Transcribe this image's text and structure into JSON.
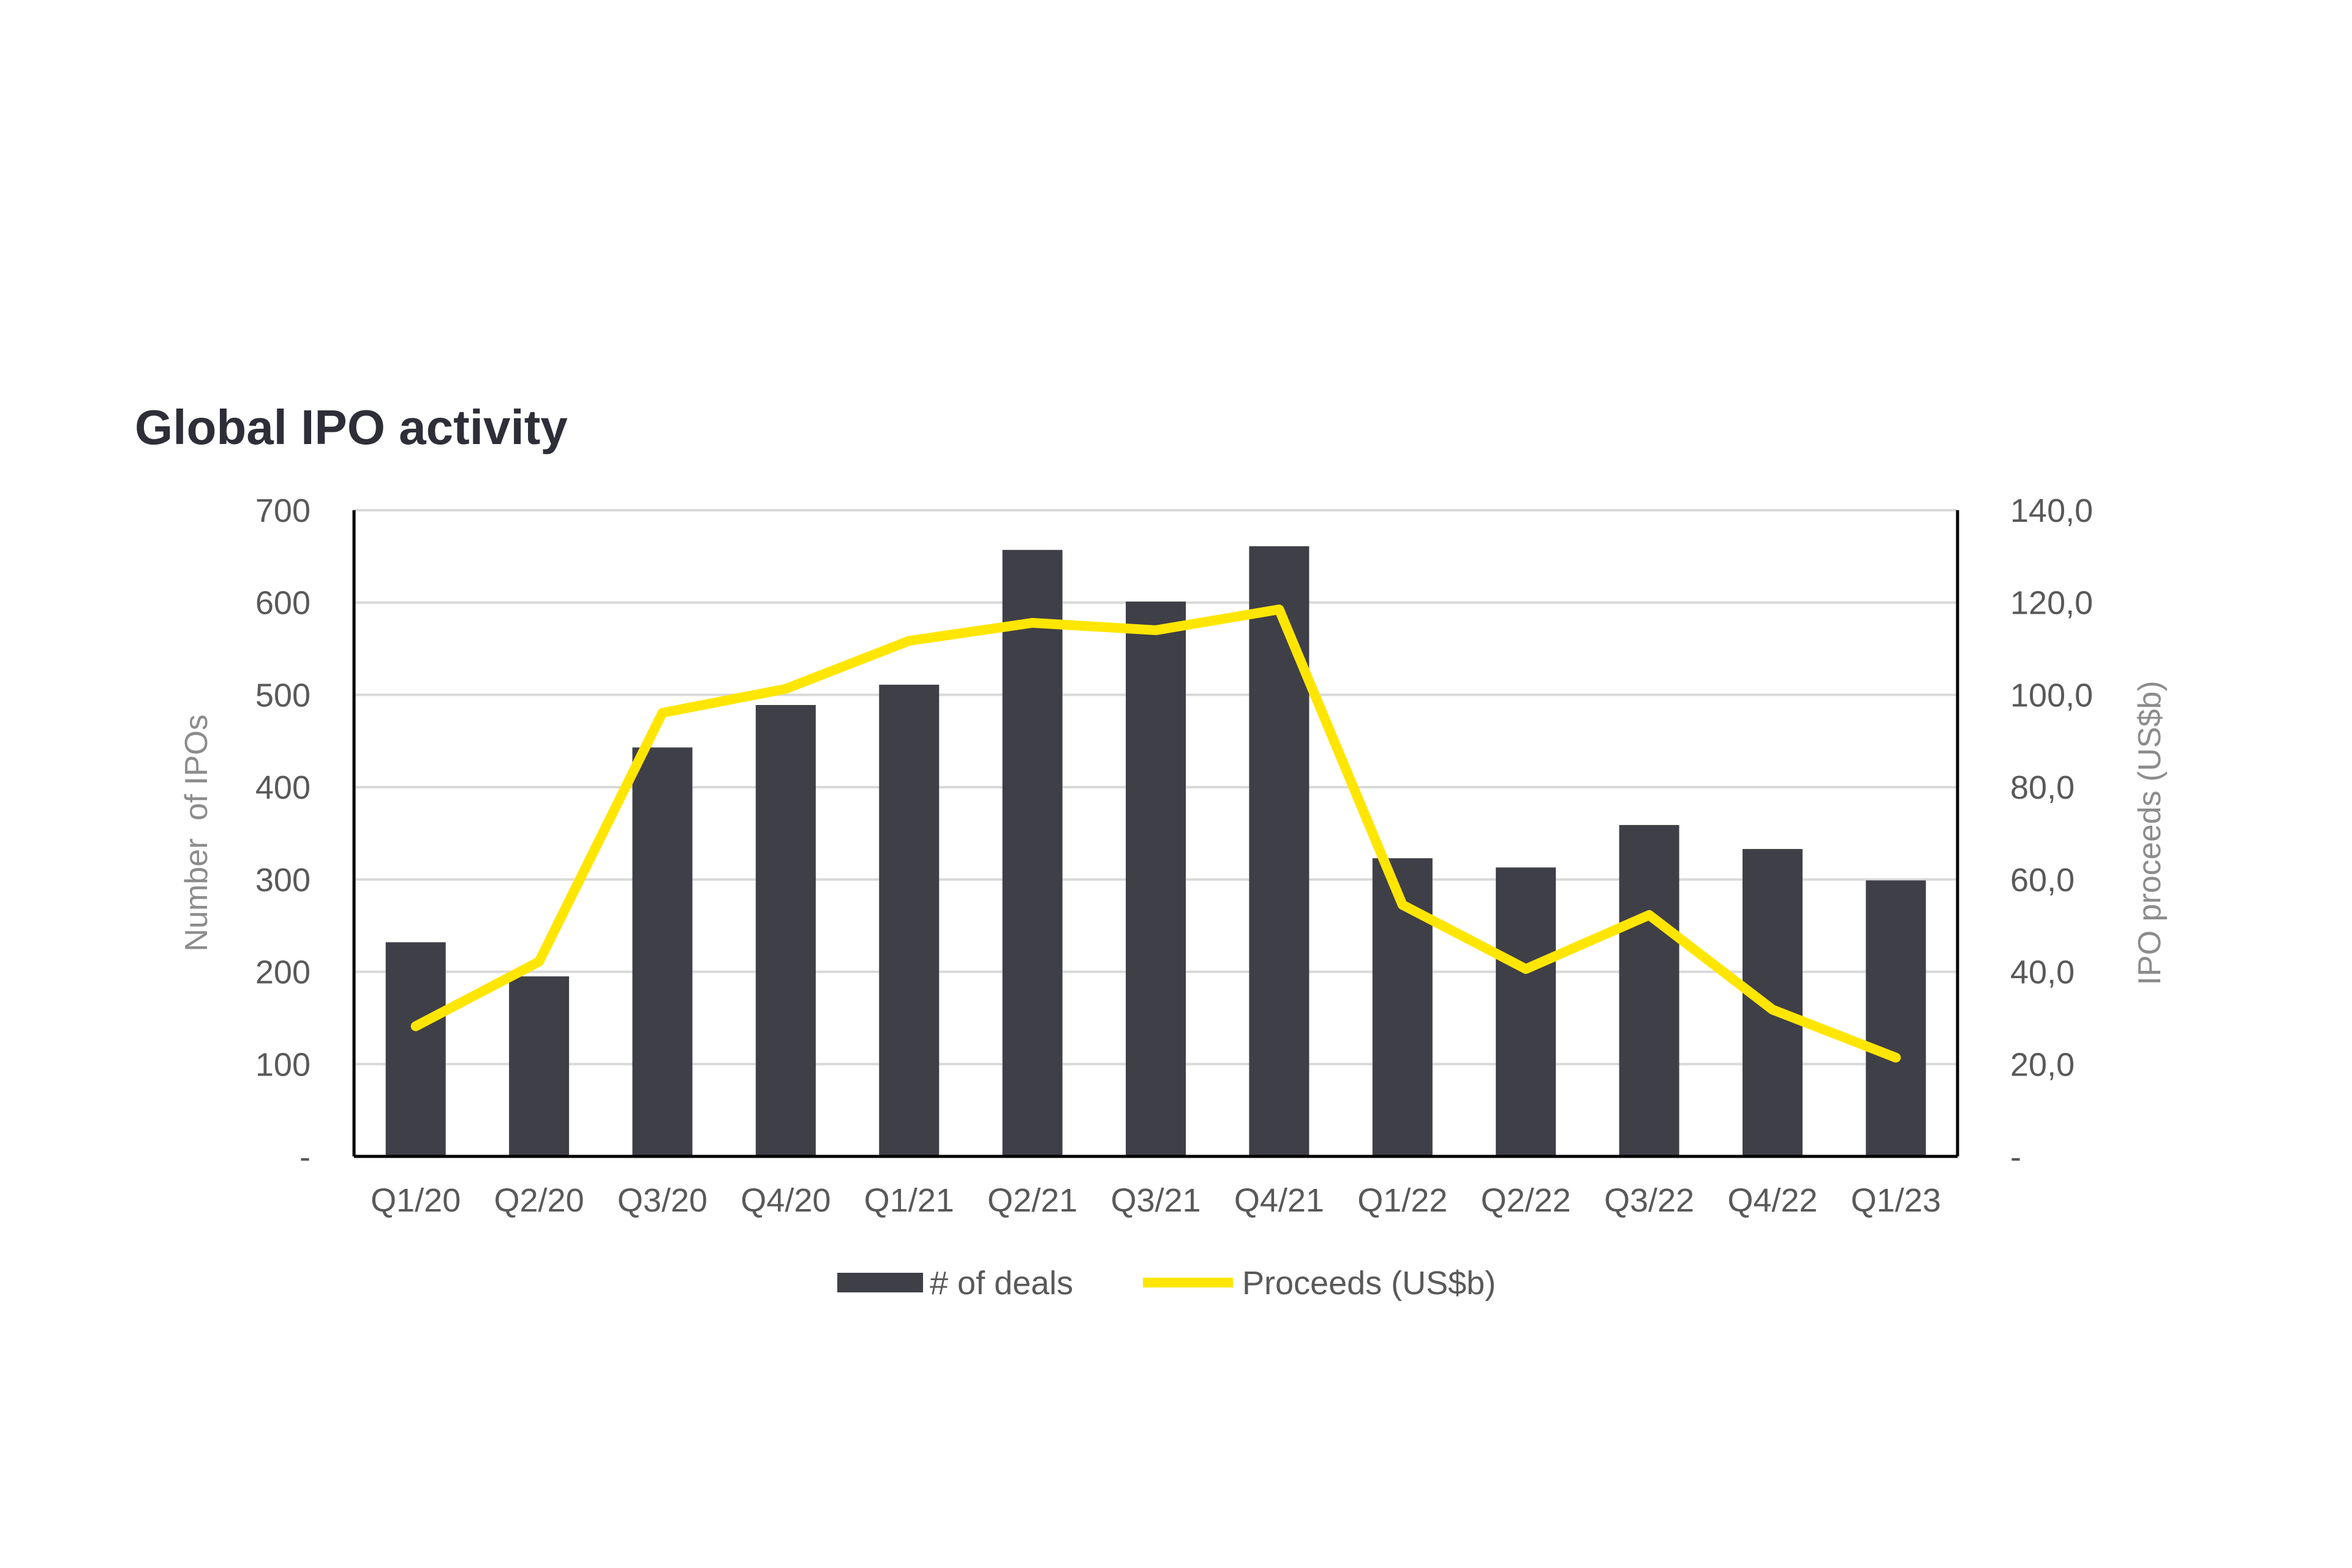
{
  "chart_data": {
    "type": "bar+line",
    "title": "Global IPO activity",
    "categories": [
      "Q1/20",
      "Q2/20",
      "Q3/20",
      "Q4/20",
      "Q1/21",
      "Q2/21",
      "Q3/21",
      "Q4/21",
      "Q1/22",
      "Q2/22",
      "Q3/22",
      "Q4/22",
      "Q1/23"
    ],
    "series": [
      {
        "name": "# of deals",
        "type": "bar",
        "axis": "left",
        "color": "#3f3f48",
        "values": [
          232,
          195,
          443,
          489,
          511,
          657,
          601,
          661,
          323,
          313,
          359,
          333,
          299
        ]
      },
      {
        "name": "Proceeds (US$b)",
        "type": "line",
        "axis": "right",
        "color": "#ffe600",
        "values": [
          28.2,
          42.2,
          96.1,
          101.3,
          111.7,
          115.6,
          114.0,
          118.5,
          54.5,
          40.6,
          52.3,
          31.8,
          21.4
        ]
      }
    ],
    "ylabel": "Number  of IPOs",
    "y2label": "IPO proceeds (US$b)",
    "ylim": [
      0,
      700
    ],
    "y2lim": [
      0,
      140
    ],
    "yticks": [
      "-",
      "100",
      "200",
      "300",
      "400",
      "500",
      "600",
      "700"
    ],
    "y2ticks": [
      "-",
      "20,0",
      "40,0",
      "60,0",
      "80,0",
      "100,0",
      "120,0",
      "140,0"
    ],
    "grid": true,
    "legend_position": "bottom"
  }
}
